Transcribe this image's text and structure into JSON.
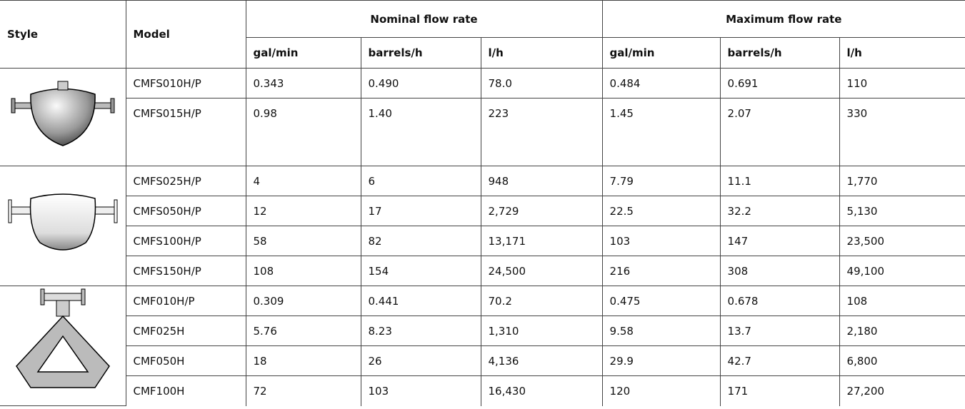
{
  "table": {
    "headers": {
      "style": "Style",
      "model": "Model",
      "groups": [
        "Nominal flow rate",
        "Maximum flow rate"
      ],
      "units": [
        "gal/min",
        "barrels/h",
        "l/h",
        "gal/min",
        "barrels/h",
        "l/h"
      ]
    },
    "rows": [
      [
        "CMFS010H/P",
        "0.343",
        "0.490",
        "78.0",
        "0.484",
        "0.691",
        "110"
      ],
      [
        "CMFS015H/P",
        "0.98",
        "1.40",
        "223",
        "1.45",
        "2.07",
        "330"
      ],
      [
        "CMFS025H/P",
        "4",
        "6",
        "948",
        "7.79",
        "11.1",
        "1,770"
      ],
      [
        "CMFS050H/P",
        "12",
        "17",
        "2,729",
        "22.5",
        "32.2",
        "5,130"
      ],
      [
        "CMFS100H/P",
        "58",
        "82",
        "13,171",
        "103",
        "147",
        "23,500"
      ],
      [
        "CMFS150H/P",
        "108",
        "154",
        "24,500",
        "216",
        "308",
        "49,100"
      ],
      [
        "CMF010H/P",
        "0.309",
        "0.441",
        "70.2",
        "0.475",
        "0.678",
        "108"
      ],
      [
        "CMF025H",
        "5.76",
        "8.23",
        "1,310",
        "9.58",
        "13.7",
        "2,180"
      ],
      [
        "CMF050H",
        "18",
        "26",
        "4,136",
        "29.9",
        "42.7",
        "6,800"
      ],
      [
        "CMF100H",
        "72",
        "103",
        "16,430",
        "120",
        "171",
        "27,200"
      ]
    ]
  }
}
